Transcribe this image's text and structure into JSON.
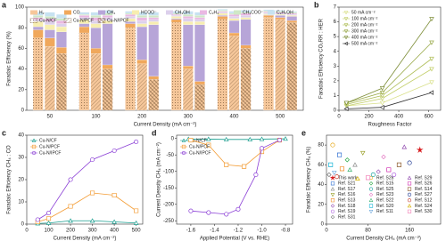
{
  "chart_data": [
    {
      "type": "stacked-bar",
      "panel_label": "a",
      "xlabel": "Current Density (mA cm⁻²)",
      "ylabel": "Faradaic Efficiency (%)",
      "categories": [
        null,
        "50",
        null,
        null,
        "100",
        null,
        null,
        "200",
        null,
        null,
        "300",
        null,
        null,
        "400",
        null,
        null,
        "500",
        null
      ],
      "catalysts": [
        "Cu-N/CF",
        "Cu-N/PCF",
        "Cu-N/IPCF"
      ],
      "ylim": [
        0,
        100
      ],
      "yticks": [
        0,
        20,
        40,
        60,
        80,
        100
      ],
      "series": [
        {
          "name": "H₂",
          "color": "#f6c79a",
          "values": [
            70,
            62,
            55,
            75,
            55,
            40,
            80,
            45,
            30,
            85,
            40,
            25,
            88,
            72,
            60,
            90,
            88,
            85
          ]
        },
        {
          "name": "CO",
          "color": "#f0a85c",
          "values": [
            8,
            8,
            6,
            6,
            5,
            4,
            4,
            4,
            3,
            3,
            3,
            3,
            3,
            3,
            3,
            2,
            2,
            2
          ]
        },
        {
          "name": "CH₄",
          "color": "#b7a5d8",
          "values": [
            3,
            8,
            15,
            3,
            20,
            40,
            2,
            32,
            50,
            1,
            40,
            55,
            1,
            12,
            25,
            0.5,
            2,
            4
          ]
        },
        {
          "name": "HCOO⁻",
          "color": "#f7eeb0",
          "values": [
            5,
            5,
            5,
            4,
            4,
            3,
            3,
            3,
            3,
            2,
            3,
            3,
            2,
            2,
            2,
            1,
            1,
            1
          ]
        },
        {
          "name": "CH₃OH",
          "color": "#dcd0ec",
          "values": [
            2,
            3,
            3,
            2,
            3,
            3,
            2,
            3,
            2,
            1,
            3,
            2,
            1,
            2,
            2,
            1,
            1,
            1
          ]
        },
        {
          "name": "C₂H₄",
          "color": "#eab8e2",
          "values": [
            2,
            3,
            3,
            2,
            3,
            2,
            2,
            3,
            2,
            1,
            2,
            2,
            1,
            2,
            2,
            1,
            1,
            1
          ]
        },
        {
          "name": "CH₃COO⁻",
          "color": "#cfe8c6",
          "values": [
            2,
            2,
            2,
            1,
            2,
            2,
            1,
            2,
            2,
            1,
            2,
            2,
            1,
            1,
            1,
            1,
            1,
            1
          ]
        },
        {
          "name": "C₂H₅OH",
          "color": "#c7e2f1",
          "values": [
            3,
            4,
            4,
            2,
            3,
            3,
            2,
            3,
            3,
            2,
            3,
            3,
            1,
            2,
            2,
            1,
            1,
            1
          ]
        }
      ]
    },
    {
      "type": "line",
      "panel_label": "b",
      "xlabel": "Roughness Factor",
      "ylabel": "Faradaic Efficiency CO₂RR : HER",
      "x": [
        50,
        290,
        620
      ],
      "xlim": [
        0,
        680
      ],
      "xticks": [
        0,
        200,
        400,
        600
      ],
      "ylim": [
        0,
        7
      ],
      "yticks": [
        0,
        1,
        2,
        3,
        4,
        5,
        6,
        7
      ],
      "series": [
        {
          "name": "50 mA cm⁻²",
          "color": "#d9e08a",
          "marker": "triangle-down",
          "values": [
            0.3,
            0.5,
            1.9
          ]
        },
        {
          "name": "100 mA cm⁻²",
          "color": "#c3cf6a",
          "marker": "triangle-down",
          "values": [
            0.3,
            0.8,
            2.8
          ]
        },
        {
          "name": "200 mA cm⁻²",
          "color": "#aebd55",
          "marker": "triangle-down",
          "values": [
            0.4,
            1.0,
            3.5
          ]
        },
        {
          "name": "300 mA cm⁻²",
          "color": "#98a846",
          "marker": "triangle-down",
          "values": [
            0.5,
            1.2,
            4.6
          ]
        },
        {
          "name": "400 mA cm⁻²",
          "color": "#7f8f3a",
          "marker": "triangle-down",
          "values": [
            0.5,
            1.5,
            6.2
          ]
        },
        {
          "name": "500 mA cm⁻²",
          "color": "#333333",
          "marker": "triangle-left",
          "values": [
            0.1,
            0.2,
            1.2
          ]
        }
      ]
    },
    {
      "type": "line",
      "panel_label": "c",
      "xlabel": "Current Density (mA cm⁻²)",
      "ylabel": "Faradaic Efficiency CH₄ : CO",
      "x": [
        50,
        100,
        200,
        300,
        400,
        500
      ],
      "xlim": [
        0,
        530
      ],
      "xticks": [
        0,
        100,
        200,
        300,
        400,
        500
      ],
      "ylim": [
        0,
        40
      ],
      "yticks": [
        0,
        10,
        20,
        30,
        40
      ],
      "series": [
        {
          "name": "Cu-N/CF",
          "color": "#1a9e8f",
          "marker": "triangle",
          "values": [
            0.3,
            0.5,
            1.5,
            1.5,
            1,
            0.5
          ]
        },
        {
          "name": "Cu-N/PCF",
          "color": "#f39c34",
          "marker": "square",
          "values": [
            1,
            2.5,
            8,
            14,
            13,
            6
          ]
        },
        {
          "name": "Cu-N/IPCF",
          "color": "#8b3fd6",
          "marker": "circle",
          "values": [
            2,
            5,
            20,
            29,
            33,
            37
          ]
        }
      ]
    },
    {
      "type": "line",
      "panel_label": "d",
      "xlabel": "Applied Potential (V vs. RHE)",
      "ylabel": "Current Density CH₄ (mA cm⁻²)",
      "xlim": [
        -1.72,
        -0.74
      ],
      "xticks": [
        -1.6,
        -1.4,
        -1.2,
        {
          "value": -1,
          "label": "-1.0"
        },
        -0.8
      ],
      "ylim": [
        -260,
        10
      ],
      "yticks": [
        0,
        -50,
        -100,
        -150,
        -200,
        -250
      ],
      "series": [
        {
          "name": "Cu-N/CF",
          "color": "#1a9e8f",
          "marker": "triangle",
          "x": [
            -1.62,
            -1.45,
            -1.3,
            -1.1,
            -1.0,
            -0.8
          ],
          "values": [
            -2,
            -2,
            -3,
            -3,
            -2,
            -1
          ]
        },
        {
          "name": "Cu-N/PCF",
          "color": "#f39c34",
          "marker": "square",
          "x": [
            -1.6,
            -1.45,
            -1.3,
            -1.15,
            -1.0,
            -0.85
          ],
          "values": [
            -5,
            -20,
            -80,
            -85,
            -40,
            -5
          ]
        },
        {
          "name": "Cu-N/IPCF",
          "color": "#8b3fd6",
          "marker": "circle",
          "x": [
            -1.6,
            -1.45,
            -1.3,
            -1.2,
            -1.05,
            -1.0,
            -0.85
          ],
          "values": [
            -220,
            -225,
            -230,
            -215,
            -110,
            -30,
            -5
          ]
        }
      ]
    },
    {
      "type": "scatter",
      "panel_label": "e",
      "xlabel": "Current Density CH₄ (mA cm⁻²)",
      "ylabel": "Faradaic Efficiency CH₄ (%)",
      "xlim": [
        0,
        220
      ],
      "xticks": [
        0,
        80,
        160
      ],
      "ylim": [
        0,
        90
      ],
      "yticks": [
        0,
        20,
        40,
        60,
        80
      ],
      "series": [
        {
          "name": "This work",
          "color": "#d7191c",
          "marker": "star",
          "x": [
            180
          ],
          "values": [
            75
          ]
        },
        {
          "name": "Ref. S28",
          "color": "#e6a817",
          "marker": "circle",
          "x": [
            12
          ],
          "values": [
            80
          ]
        },
        {
          "name": "Ref. S29",
          "color": "#8e44ad",
          "marker": "triangle",
          "x": [
            150
          ],
          "values": [
            78
          ]
        },
        {
          "name": "Ref. S21",
          "color": "#2e6fd1",
          "marker": "square",
          "x": [
            25
          ],
          "values": [
            70
          ]
        },
        {
          "name": "Ref. S15",
          "color": "#27a844",
          "marker": "diamond",
          "x": [
            40
          ],
          "values": [
            65
          ]
        },
        {
          "name": "Ref. S26",
          "color": "#d12fb0",
          "marker": "square",
          "x": [
            120
          ],
          "values": [
            55
          ]
        },
        {
          "name": "Ref. S17",
          "color": "#888888",
          "marker": "triangle",
          "x": [
            55
          ],
          "values": [
            60
          ]
        },
        {
          "name": "Ref. S25",
          "color": "#17a2a2",
          "marker": "circle",
          "x": [
            90
          ],
          "values": [
            50
          ]
        },
        {
          "name": "Ref. S14",
          "color": "#8b5a2b",
          "marker": "square",
          "x": [
            140
          ],
          "values": [
            60
          ]
        },
        {
          "name": "Ref. S16",
          "color": "#9aa02a",
          "marker": "triangle-down",
          "x": [
            70
          ],
          "values": [
            72
          ]
        },
        {
          "name": "Ref. S23",
          "color": "#e377c2",
          "marker": "diamond",
          "x": [
            110
          ],
          "values": [
            68
          ]
        },
        {
          "name": "Ref. S27",
          "color": "#1f3a93",
          "marker": "circle",
          "x": [
            160
          ],
          "values": [
            62
          ]
        },
        {
          "name": "Ref. S13",
          "color": "#f08a24",
          "marker": "square",
          "x": [
            30
          ],
          "values": [
            56
          ]
        },
        {
          "name": "Ref. S22",
          "color": "#3cb371",
          "marker": "triangle",
          "x": [
            45
          ],
          "values": [
            55
          ]
        },
        {
          "name": "Ref. S12",
          "color": "#c0392b",
          "marker": "circle",
          "x": [
            20
          ],
          "values": [
            48
          ]
        },
        {
          "name": "Ref. S18",
          "color": "#9b59b6",
          "marker": "diamond",
          "x": [
            100
          ],
          "values": [
            53
          ]
        },
        {
          "name": "Ref. S20",
          "color": "#16b3d6",
          "marker": "square",
          "x": [
            8
          ],
          "values": [
            60
          ]
        },
        {
          "name": "Ref. S24",
          "color": "#d4b000",
          "marker": "triangle",
          "x": [
            60
          ],
          "values": [
            46
          ]
        },
        {
          "name": "Ref. S19",
          "color": "#b36ae2",
          "marker": "circle",
          "x": [
            130
          ],
          "values": [
            50
          ]
        },
        {
          "name": "Ref. S11",
          "color": "#6fa8dc",
          "marker": "triangle-down",
          "x": [
            15
          ],
          "values": [
            52
          ]
        },
        {
          "name": "Ref. S30",
          "color": "#f27eb5",
          "marker": "square",
          "x": [
            80
          ],
          "values": [
            47
          ]
        },
        {
          "name": "Ref. S31",
          "color": "#777777",
          "marker": "diamond",
          "x": [
            5
          ],
          "values": [
            50
          ]
        }
      ]
    }
  ]
}
